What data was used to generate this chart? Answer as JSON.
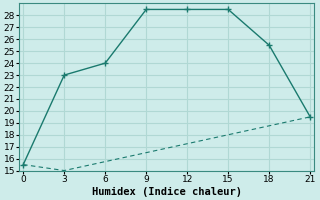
{
  "xlabel": "Humidex (Indice chaleur)",
  "bg_color": "#ceecea",
  "grid_color": "#b0d8d4",
  "line_color": "#1a7a6e",
  "line1_x": [
    0,
    3,
    6,
    9,
    12,
    15,
    21
  ],
  "line1_y": [
    15.5,
    23.0,
    24.0,
    28.5,
    28.5,
    28.5,
    19.5
  ],
  "line2_x": [
    0,
    3,
    21
  ],
  "line2_y": [
    15.5,
    15.0,
    19.5
  ],
  "markers1_x": [
    0,
    3,
    6,
    9,
    12,
    15,
    18,
    21
  ],
  "markers1_y": [
    15.5,
    23.0,
    24.0,
    28.5,
    28.5,
    28.5,
    25.5,
    19.5
  ],
  "xlim": [
    -0.3,
    21.3
  ],
  "ylim": [
    15,
    29
  ],
  "xticks": [
    0,
    3,
    6,
    9,
    12,
    15,
    18,
    21
  ],
  "yticks": [
    15,
    16,
    17,
    18,
    19,
    20,
    21,
    22,
    23,
    24,
    25,
    26,
    27,
    28
  ],
  "tick_fontsize": 6.5,
  "xlabel_fontsize": 7.5
}
